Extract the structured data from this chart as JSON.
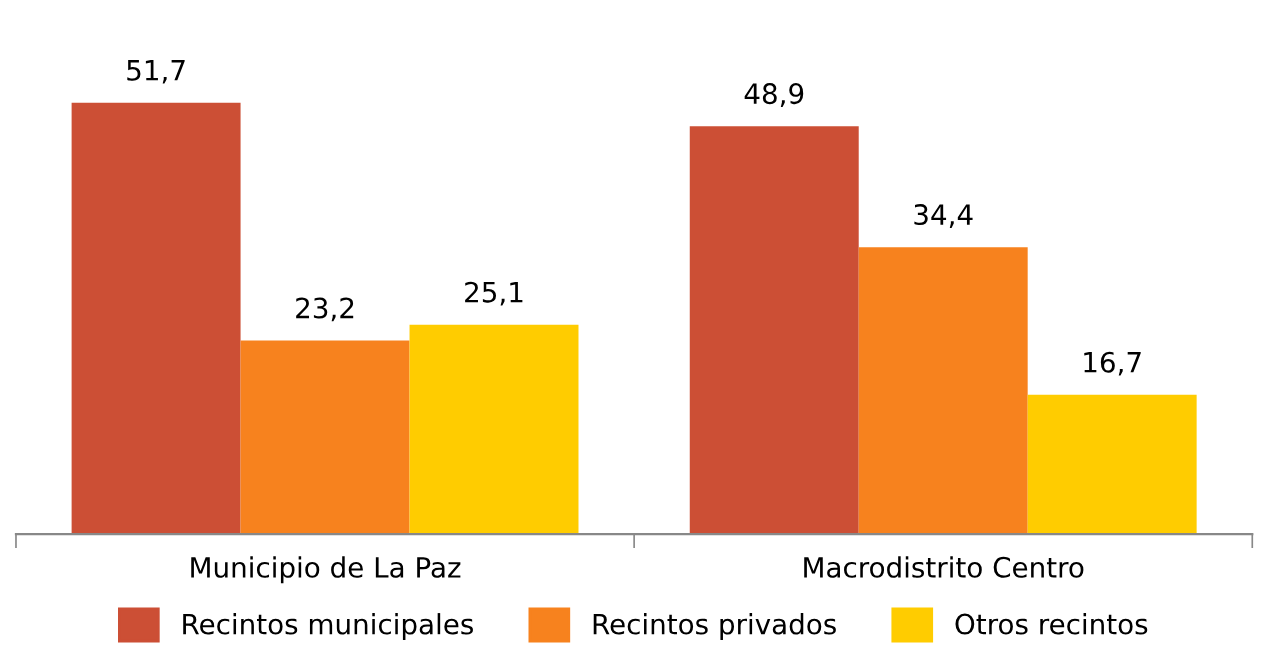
{
  "chart_data": {
    "type": "bar",
    "categories": [
      "Municipio de La Paz",
      "Macrodistrito Centro"
    ],
    "series": [
      {
        "name": "Recintos municipales",
        "color": "#cc4f35",
        "values": [
          51.7,
          48.9
        ],
        "value_labels": [
          "51,7",
          "48,9"
        ]
      },
      {
        "name": "Recintos privados",
        "color": "#f7821e",
        "values": [
          23.2,
          34.4
        ],
        "value_labels": [
          "23,2",
          "34,4"
        ]
      },
      {
        "name": "Otros recintos",
        "color": "#ffcc00",
        "values": [
          25.1,
          16.7
        ],
        "value_labels": [
          "25,1",
          "16,7"
        ]
      }
    ],
    "legend": "bottom",
    "grid": false
  }
}
